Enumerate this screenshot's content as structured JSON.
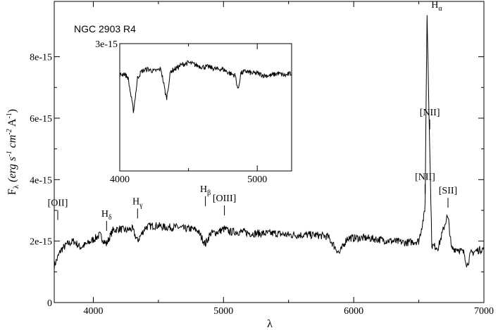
{
  "chart_data": [
    {
      "type": "line",
      "title": "NGC 2903 R4",
      "xlabel": "λ",
      "ylabel": "F_λ (erg s^-1 cm^-2 Å^-1)",
      "ylabel_parts": {
        "base": "F",
        "base_sub": "λ",
        "open": "(",
        "erg": "erg s",
        "erg_sup": "-1",
        "cm": "cm",
        "cm_sup": "-2",
        "ang": "A",
        "ang_sup": "-1",
        "close": ")"
      },
      "xlim": [
        3700,
        7000
      ],
      "ylim": [
        0,
        9.8e-15
      ],
      "xticks": [
        4000,
        5000,
        6000,
        7000
      ],
      "xtick_labels": [
        "4000",
        "5000",
        "6000",
        "7000"
      ],
      "yticks": [
        0,
        2e-15,
        4e-15,
        6e-15,
        8e-15
      ],
      "ytick_labels": [
        "0",
        "2e-15",
        "4e-15",
        "6e-15",
        "8e-15"
      ],
      "grid": false,
      "x": [
        3700,
        3750,
        3800,
        3850,
        3900,
        3950,
        4000,
        4050,
        4100,
        4150,
        4200,
        4250,
        4300,
        4340,
        4400,
        4450,
        4500,
        4550,
        4600,
        4650,
        4700,
        4750,
        4800,
        4861,
        4900,
        4959,
        5007,
        5050,
        5100,
        5150,
        5200,
        5300,
        5400,
        5500,
        5600,
        5700,
        5800,
        5890,
        5950,
        6000,
        6100,
        6200,
        6300,
        6400,
        6500,
        6548,
        6563,
        6584,
        6600,
        6650,
        6717,
        6731,
        6750,
        6800,
        6850,
        6870,
        6900,
        6950,
        7000
      ],
      "y": [
        1.2e-15,
        1.7e-15,
        1.9e-15,
        2e-15,
        1.8e-15,
        1.9e-15,
        2.05e-15,
        2.2e-15,
        1.9e-15,
        2.35e-15,
        2.4e-15,
        2.35e-15,
        2.4e-15,
        2e-15,
        2.45e-15,
        2.5e-15,
        2.5e-15,
        2.45e-15,
        2.45e-15,
        2.45e-15,
        2.4e-15,
        2.4e-15,
        2.35e-15,
        1.9e-15,
        2.25e-15,
        2.3e-15,
        2.4e-15,
        2.3e-15,
        2.3e-15,
        2.3e-15,
        2.25e-15,
        2.25e-15,
        2.25e-15,
        2.2e-15,
        2.2e-15,
        2.2e-15,
        2.15e-15,
        1.6e-15,
        2.1e-15,
        2.1e-15,
        2.1e-15,
        2.05e-15,
        2e-15,
        1.95e-15,
        2e-15,
        3e-15,
        9.5e-15,
        5e-15,
        1.85e-15,
        1.8e-15,
        2.8e-15,
        2.6e-15,
        1.75e-15,
        1.75e-15,
        1.6e-15,
        1.2e-15,
        1.6e-15,
        1.7e-15,
        1.75e-15
      ],
      "annotations": [
        {
          "label": "[OII]",
          "x": 3727,
          "y": 2.55e-15
        },
        {
          "label": "H",
          "sub": "δ",
          "x": 4102,
          "y": 2.2e-15
        },
        {
          "label": "H",
          "sub": "γ",
          "x": 4340,
          "y": 2.6e-15
        },
        {
          "label": "H",
          "sub": "β",
          "x": 4861,
          "y": 3e-15
        },
        {
          "label": "[OIII]",
          "x": 5007,
          "y": 2.7e-15
        },
        {
          "label": "[NII]",
          "x": 6548,
          "y": 3.4e-15
        },
        {
          "label": "[NII]",
          "x": 6584,
          "y": 5.5e-15
        },
        {
          "label": "[SII]",
          "x": 6724,
          "y": 2.95e-15
        },
        {
          "label": "H",
          "sub": "α",
          "x": 6563,
          "y": 9.5e-15
        }
      ]
    },
    {
      "type": "line",
      "inset": true,
      "xlim": [
        4000,
        5250
      ],
      "ylim": [
        0,
        3e-15
      ],
      "xticks": [
        4000,
        5000
      ],
      "xtick_labels": [
        "4000",
        "5000"
      ],
      "ytick_labels": [
        "3e-15"
      ],
      "yticks": [
        3e-15
      ],
      "x": [
        4000,
        4030,
        4060,
        4100,
        4130,
        4160,
        4200,
        4250,
        4300,
        4340,
        4370,
        4400,
        4450,
        4500,
        4550,
        4600,
        4650,
        4700,
        4750,
        4800,
        4840,
        4861,
        4880,
        4920,
        4960,
        5000,
        5050,
        5100,
        5150,
        5200,
        5250
      ],
      "y": [
        2.25e-15,
        2.3e-15,
        2.2e-15,
        1.4e-15,
        2.2e-15,
        2.35e-15,
        2.4e-15,
        2.35e-15,
        2.4e-15,
        1.7e-15,
        2.35e-15,
        2.4e-15,
        2.5e-15,
        2.55e-15,
        2.5e-15,
        2.45e-15,
        2.45e-15,
        2.4e-15,
        2.4e-15,
        2.3e-15,
        2.25e-15,
        1.9e-15,
        2.3e-15,
        2.35e-15,
        2.3e-15,
        2.3e-15,
        2.25e-15,
        2.25e-15,
        2.3e-15,
        2.25e-15,
        2.3e-15
      ]
    }
  ]
}
